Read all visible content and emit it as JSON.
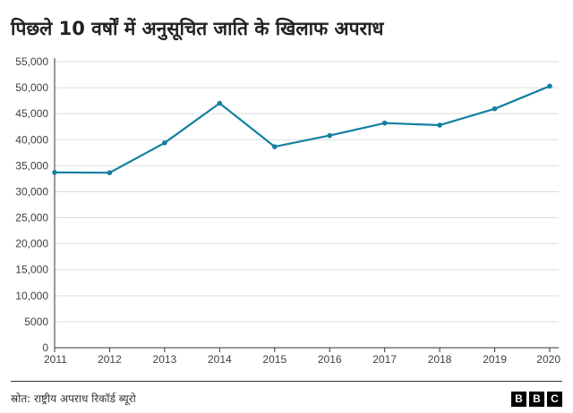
{
  "title": "पिछले 10 वर्षों में अनुसूचित जाति के खिलाफ अपराध",
  "source": "स्रोत: राष्ट्रीय अपराध रिकॉर्ड ब्यूरो",
  "logo_letters": [
    "B",
    "B",
    "C"
  ],
  "colors": {
    "line": "#1380a1",
    "grid": "#dddddd",
    "axis": "#333333"
  },
  "chart_data": {
    "type": "line",
    "title": "पिछले 10 वर्षों में अनुसूचित जाति के खिलाफ अपराध",
    "xlabel": "",
    "ylabel": "",
    "x": [
      2011,
      2012,
      2013,
      2014,
      2015,
      2016,
      2017,
      2018,
      2019,
      2020
    ],
    "series": [
      {
        "values": [
          33700,
          33650,
          39400,
          47000,
          38650,
          40800,
          43200,
          42800,
          45950,
          50300
        ]
      }
    ],
    "ylim": [
      0,
      55000
    ],
    "yticks": [
      0,
      5000,
      10000,
      15000,
      20000,
      25000,
      30000,
      35000,
      40000,
      45000,
      50000,
      55000
    ],
    "ytick_labels": [
      "0",
      "5000",
      "10,000",
      "15,000",
      "20,000",
      "25,000",
      "30,000",
      "35,000",
      "40,000",
      "45,000",
      "50,000",
      "55,000"
    ],
    "xtick_labels": [
      "2011",
      "2012",
      "2013",
      "2014",
      "2015",
      "2016",
      "2017",
      "2018",
      "2019",
      "2020"
    ],
    "grid": "horizontal",
    "legend": "none"
  }
}
